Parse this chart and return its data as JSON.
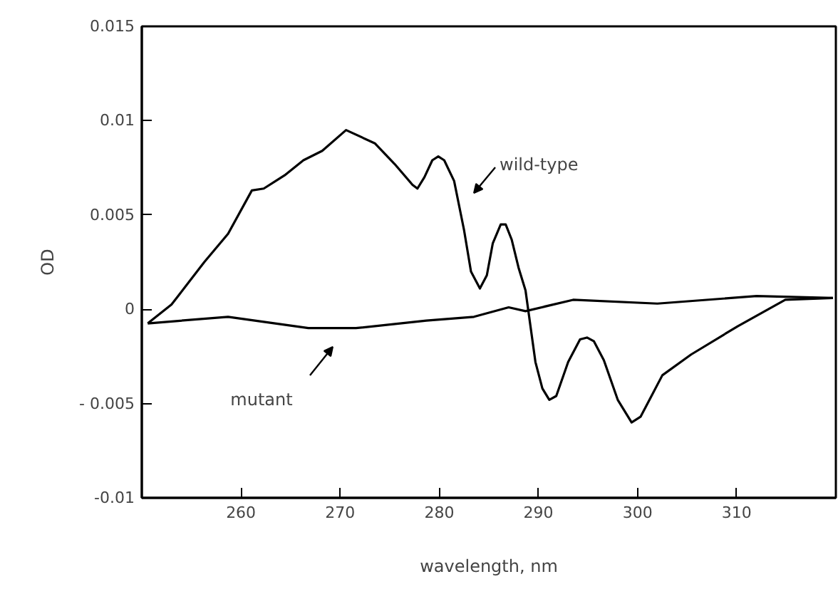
{
  "chart_data": {
    "type": "line",
    "xlabel": "wavelength, nm",
    "ylabel": "OD",
    "xlim": [
      250,
      320
    ],
    "xticks": [
      260,
      270,
      280,
      290,
      300,
      310
    ],
    "ylim": [
      -0.01,
      0.015
    ],
    "yticks": [
      {
        "value": -0.01,
        "label": "-0.01"
      },
      {
        "value": -0.005,
        "label": "- 0.005"
      },
      0,
      0.005,
      0.01,
      0.015
    ],
    "grid": false,
    "marker": "none",
    "line_style": "solid",
    "series": [
      {
        "color": "#000000",
        "x": [
          250.6,
          253,
          256.3,
          258.7,
          261.1,
          262.3,
          264.4,
          266.3,
          268.2,
          270.6,
          273.5,
          275.5,
          277.3,
          277.8,
          278.5,
          279.3,
          279.9,
          280.5,
          281.5,
          282.5,
          283.2,
          284.1,
          284.8,
          285.4,
          286.2,
          286.7,
          287.3,
          288,
          288.7,
          289.7,
          290.4,
          291.1,
          291.8,
          293,
          294.2,
          294.9,
          295.6,
          296.6,
          298,
          299.4,
          300.3,
          301.3,
          302.5,
          305.4,
          310.1,
          314.9,
          319.7
        ],
        "values": [
          -0.00075,
          0.00025,
          0.0025,
          0.004,
          0.0063,
          0.0064,
          0.0071,
          0.0079,
          0.0084,
          0.0095,
          0.0088,
          0.0077,
          0.0066,
          0.0064,
          0.007,
          0.0079,
          0.0081,
          0.0079,
          0.0068,
          0.0042,
          0.002,
          0.0011,
          0.0018,
          0.0035,
          0.0045,
          0.0045,
          0.0037,
          0.0022,
          0.001,
          -0.0028,
          -0.0042,
          -0.0048,
          -0.0046,
          -0.0028,
          -0.0016,
          -0.0015,
          -0.0017,
          -0.0027,
          -0.0048,
          -0.006,
          -0.0057,
          -0.0047,
          -0.0035,
          -0.0024,
          -0.0009,
          0.0005,
          0.0006
        ]
      },
      {
        "color": "#000000",
        "x": [
          250.6,
          258.7,
          266.8,
          271.6,
          278.7,
          283.5,
          287,
          288.7,
          293.5,
          302,
          312,
          319.7
        ],
        "values": [
          -0.00075,
          -0.0004,
          -0.001,
          -0.001,
          -0.0006,
          -0.0004,
          0.0001,
          -0.0001,
          0.0005,
          0.0003,
          0.0007,
          0.0006
        ]
      }
    ],
    "annotations": [
      "wild-type",
      "mutant"
    ]
  }
}
